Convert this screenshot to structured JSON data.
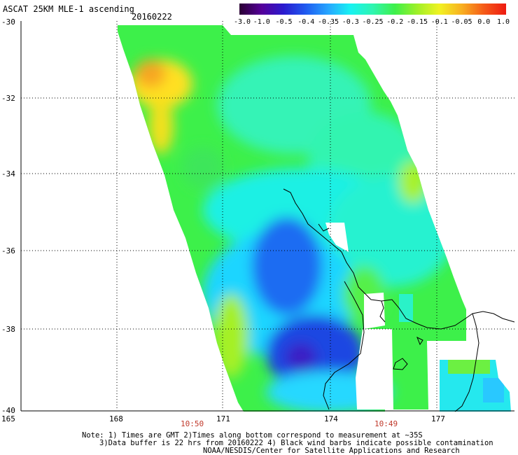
{
  "header": {
    "title": "ASCAT 25KM MLE-1 ascending",
    "date": "20160222"
  },
  "colorbar": {
    "ticks": [
      "-3.0",
      "-1.0",
      "-0.5",
      "-0.4",
      "-0.35",
      "-0.3",
      "-0.25",
      "-0.2",
      "-0.15",
      "-0.1",
      "-0.05",
      "0.0",
      "1.0"
    ],
    "colors": [
      "#2a0033",
      "#55009a",
      "#2a1bcf",
      "#1f5cf0",
      "#26a6ff",
      "#18f2f2",
      "#2ff5b0",
      "#3ef04a",
      "#9ff028",
      "#f1f222",
      "#f8b021",
      "#f55b18",
      "#ee1a12"
    ]
  },
  "axes": {
    "lat_labels": [
      "-30",
      "-32",
      "-34",
      "-36",
      "-38",
      "-40"
    ],
    "lon_labels": [
      "165",
      "168",
      "171",
      "174",
      "177"
    ]
  },
  "times": {
    "left": "10:50",
    "right": "10:49"
  },
  "notes": {
    "line1": "Note: 1) Times are GMT 2)Times along bottom correspond to measurement at ~35S",
    "line2": "3)Data buffer is 22 hrs from 20160222 4) Black wind barbs indicate possible contamination",
    "line3": "NOAA/NESDIS/Center for Satellite Applications and Research"
  },
  "colors": {
    "text_time": "#c0392b"
  }
}
